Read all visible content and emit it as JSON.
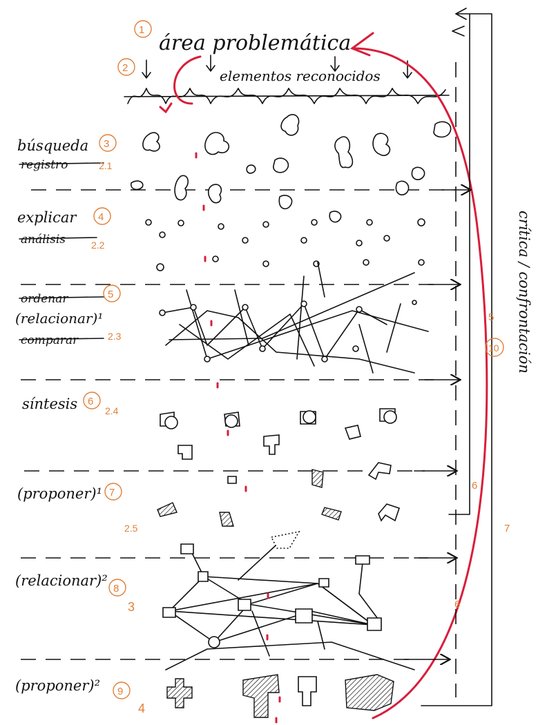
{
  "title": "área problemática",
  "subtitle": "elementos reconocidos",
  "steps": [
    {
      "num": "1",
      "label": ""
    },
    {
      "num": "2",
      "label": ""
    },
    {
      "num": "3",
      "label": "búsqueda",
      "struck": "registro",
      "code": "2.1"
    },
    {
      "num": "4",
      "label": "explicar",
      "struck": "análisis",
      "code": "2.2"
    },
    {
      "num": "5",
      "label": "(relacionar)¹",
      "struck": "ordenar",
      "struck2": "comparar",
      "code": "2.3"
    },
    {
      "num": "6",
      "label": "síntesis",
      "code": "2.4"
    },
    {
      "num": "7",
      "label": "(proponer)¹",
      "code": "2.5"
    },
    {
      "num": "8",
      "label": "(relacionar)²",
      "code": "3"
    },
    {
      "num": "9",
      "label": "(proponer)²",
      "code": "4"
    }
  ],
  "side_label": "crítica / confrontación",
  "side_notes": [
    "5",
    "6",
    "7",
    "6",
    "10"
  ]
}
